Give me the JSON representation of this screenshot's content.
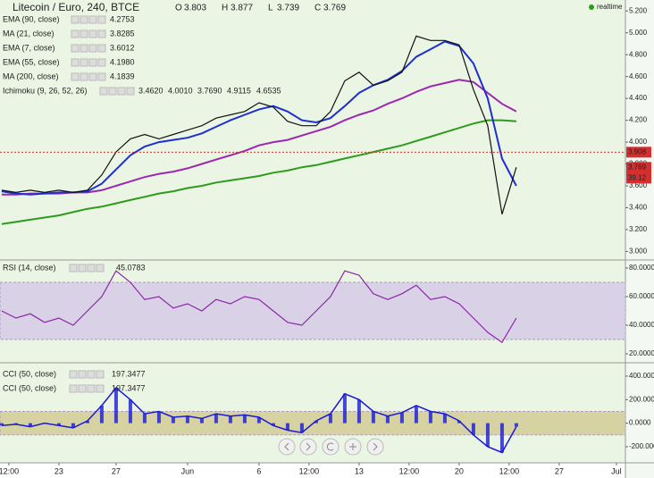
{
  "chart_data": [
    {
      "type": "line",
      "title": "Litecoin / Euro, 240, BTCE",
      "ohlc": {
        "labels": [
          "O",
          "H",
          "L",
          "C"
        ],
        "values": [
          "3.803",
          "3.877",
          "3.739",
          "3.769"
        ]
      },
      "status": "realtime",
      "indicators": [
        {
          "name": "EMA (90, close)",
          "values": [
            "4.2753"
          ],
          "colors": [
            "#9c27b0"
          ]
        },
        {
          "name": "MA (21, close)",
          "values": [
            "3.8285"
          ],
          "colors": [
            "#1a237e"
          ]
        },
        {
          "name": "EMA (7, close)",
          "values": [
            "3.6012"
          ],
          "colors": [
            "#1565c0"
          ]
        },
        {
          "name": "EMA (55, close)",
          "values": [
            "4.1980"
          ],
          "colors": [
            "#1a237e"
          ]
        },
        {
          "name": "MA (200, close)",
          "values": [
            "4.1839"
          ],
          "colors": [
            "#2e7d32"
          ]
        },
        {
          "name": "Ichimoku (9, 26, 52, 26)",
          "values": [
            "3.4620",
            "4.0010",
            "3.7690",
            "4.9115",
            "4.6535"
          ],
          "colors": [
            "#039be5",
            "#c62828",
            "#1b5e20",
            "#2e7d32",
            "#c62828"
          ]
        }
      ],
      "x": [
        19,
        20,
        21,
        22,
        23,
        24,
        25,
        26,
        27,
        28,
        29,
        30,
        31,
        32,
        33,
        34,
        35,
        36,
        37,
        38,
        39,
        40,
        41,
        42,
        43,
        44,
        45,
        46,
        47,
        48,
        49,
        50,
        51,
        52,
        53,
        54,
        55
      ],
      "xlim": [
        18.88,
        62.63
      ],
      "xticks": [
        {
          "value": 19.5,
          "label": "12:00"
        },
        {
          "value": 23,
          "label": "23"
        },
        {
          "value": 27,
          "label": "27"
        },
        {
          "value": 32,
          "label": "Jun"
        },
        {
          "value": 37,
          "label": "6"
        },
        {
          "value": 40.5,
          "label": "12:00"
        },
        {
          "value": 44,
          "label": "13"
        },
        {
          "value": 47.5,
          "label": "12:00"
        },
        {
          "value": 51,
          "label": "20"
        },
        {
          "value": 54.5,
          "label": "12:00"
        },
        {
          "value": 58,
          "label": "27"
        },
        {
          "value": 62,
          "label": "Jul"
        }
      ],
      "ylim": [
        2.93,
        5.3
      ],
      "yticks": [
        {
          "value": 3.0,
          "label": "3.000"
        },
        {
          "value": 3.2,
          "label": "3.200"
        },
        {
          "value": 3.4,
          "label": "3.400"
        },
        {
          "value": 3.6,
          "label": "3.600"
        },
        {
          "value": 3.8,
          "label": "3.800"
        },
        {
          "value": 4.0,
          "label": "4.000"
        },
        {
          "value": 4.2,
          "label": "4.200"
        },
        {
          "value": 4.4,
          "label": "4.400"
        },
        {
          "value": 4.6,
          "label": "4.600"
        },
        {
          "value": 4.8,
          "label": "4.800"
        },
        {
          "value": 5.0,
          "label": "5.000"
        },
        {
          "value": 5.2,
          "label": "5.200"
        }
      ],
      "price_line": {
        "value": 3.908,
        "label": "3.908"
      },
      "last_price": {
        "value": 3.769,
        "label": "3.769"
      },
      "countdown": "39.12",
      "series": [
        {
          "color": "#2e9b1e",
          "values": [
            3.25,
            3.27,
            3.29,
            3.31,
            3.33,
            3.36,
            3.39,
            3.41,
            3.44,
            3.47,
            3.5,
            3.53,
            3.55,
            3.58,
            3.6,
            3.63,
            3.65,
            3.67,
            3.69,
            3.72,
            3.74,
            3.77,
            3.79,
            3.82,
            3.85,
            3.88,
            3.91,
            3.94,
            3.97,
            4.01,
            4.05,
            4.09,
            4.13,
            4.17,
            4.2,
            4.2,
            4.19
          ]
        },
        {
          "color": "#9c27b0",
          "values": [
            3.52,
            3.52,
            3.53,
            3.53,
            3.53,
            3.54,
            3.54,
            3.56,
            3.6,
            3.64,
            3.68,
            3.71,
            3.73,
            3.76,
            3.8,
            3.84,
            3.88,
            3.92,
            3.97,
            4.0,
            4.02,
            4.06,
            4.1,
            4.14,
            4.2,
            4.25,
            4.29,
            4.35,
            4.4,
            4.46,
            4.51,
            4.54,
            4.57,
            4.55,
            4.45,
            4.35,
            4.28
          ]
        },
        {
          "color": "#1f2fd0",
          "values": [
            3.55,
            3.53,
            3.52,
            3.53,
            3.54,
            3.54,
            3.55,
            3.62,
            3.75,
            3.88,
            3.96,
            4.0,
            4.02,
            4.04,
            4.08,
            4.14,
            4.2,
            4.25,
            4.3,
            4.33,
            4.28,
            4.2,
            4.18,
            4.22,
            4.33,
            4.45,
            4.52,
            4.57,
            4.65,
            4.78,
            4.85,
            4.92,
            4.88,
            4.72,
            4.4,
            3.85,
            3.6
          ]
        },
        {
          "color": "#111111",
          "values": [
            3.56,
            3.54,
            3.56,
            3.54,
            3.56,
            3.54,
            3.56,
            3.7,
            3.91,
            4.03,
            4.07,
            4.03,
            4.07,
            4.11,
            4.15,
            4.22,
            4.25,
            4.28,
            4.36,
            4.32,
            4.19,
            4.15,
            4.15,
            4.28,
            4.56,
            4.64,
            4.52,
            4.56,
            4.64,
            4.97,
            4.93,
            4.93,
            4.89,
            4.48,
            4.15,
            3.34,
            3.77
          ]
        }
      ]
    },
    {
      "type": "line",
      "title": "RSI (14, close)",
      "value_text": "45.0783",
      "ylim": [
        14.4,
        85
      ],
      "yticks": [
        {
          "value": 20,
          "label": "20.0000"
        },
        {
          "value": 40,
          "label": "40.0000"
        },
        {
          "value": 60,
          "label": "60.0000"
        },
        {
          "value": 80,
          "label": "80.0000"
        }
      ],
      "band": [
        30,
        70
      ],
      "series": [
        {
          "color": "#8e24aa",
          "values": [
            50,
            45,
            48,
            42,
            45,
            40,
            50,
            60,
            78,
            70,
            58,
            60,
            52,
            55,
            50,
            58,
            55,
            60,
            58,
            50,
            42,
            40,
            50,
            60,
            78,
            75,
            62,
            58,
            62,
            68,
            58,
            60,
            55,
            45,
            35,
            28,
            45
          ]
        }
      ]
    },
    {
      "type": "bar",
      "titles": [
        "CCI (50, close)",
        "CCI (50, close)"
      ],
      "value_texts": [
        "197.3477",
        "197.3477"
      ],
      "ylim": [
        -337,
        506
      ],
      "yticks": [
        {
          "value": -200,
          "label": "-200.000"
        },
        {
          "value": 0,
          "label": "0.0000"
        },
        {
          "value": 200,
          "label": "200.000"
        },
        {
          "value": 400,
          "label": "400.000"
        }
      ],
      "band": [
        -100,
        100
      ],
      "series": [
        {
          "color": "#1a1ad6",
          "values": [
            -20,
            -10,
            -30,
            0,
            -20,
            -40,
            20,
            150,
            300,
            200,
            80,
            100,
            50,
            60,
            40,
            80,
            60,
            70,
            50,
            -20,
            -60,
            -80,
            20,
            80,
            250,
            200,
            100,
            60,
            90,
            150,
            100,
            80,
            20,
            -100,
            -200,
            -250,
            -30
          ]
        }
      ]
    }
  ]
}
